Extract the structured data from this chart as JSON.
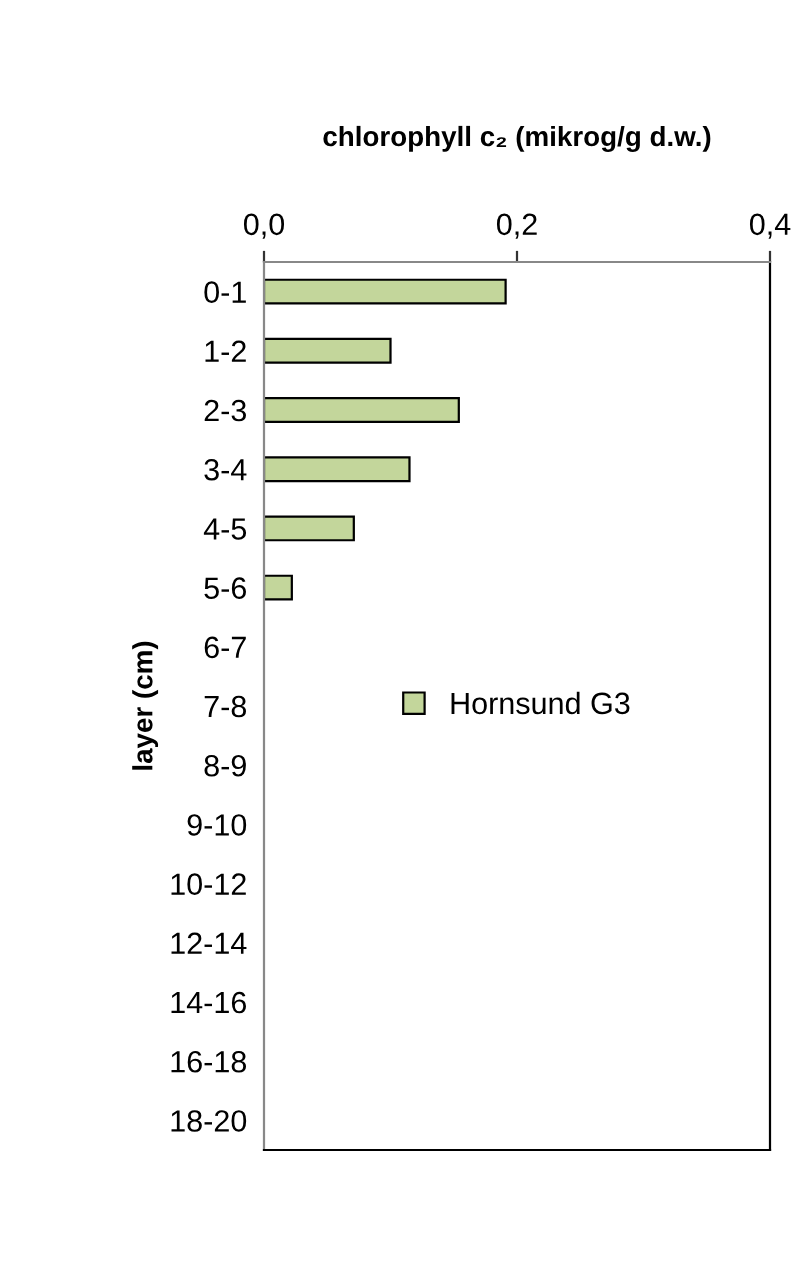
{
  "chart_data": {
    "type": "bar",
    "orientation": "horizontal",
    "xlabel": "chlorophyll c₂ (mikrog/g d.w.)",
    "ylabel": "layer (cm)",
    "categories": [
      "0-1",
      "1-2",
      "2-3",
      "3-4",
      "4-5",
      "5-6",
      "6-7",
      "7-8",
      "8-9",
      "9-10",
      "10-12",
      "12-14",
      "14-16",
      "16-18",
      "18-20"
    ],
    "series": [
      {
        "name": "Hornsund G3",
        "color": "#c3d69b",
        "values": [
          0.191,
          0.1,
          0.154,
          0.115,
          0.071,
          0.022,
          null,
          null,
          null,
          null,
          null,
          null,
          null,
          null,
          null
        ]
      }
    ],
    "xlim": [
      0,
      0.4
    ],
    "xticks": [
      {
        "value": 0,
        "label": "0,0"
      },
      {
        "value": 0.2,
        "label": "0,2"
      },
      {
        "value": 0.4,
        "label": "0,4"
      }
    ],
    "grid": false,
    "legend": "center"
  }
}
